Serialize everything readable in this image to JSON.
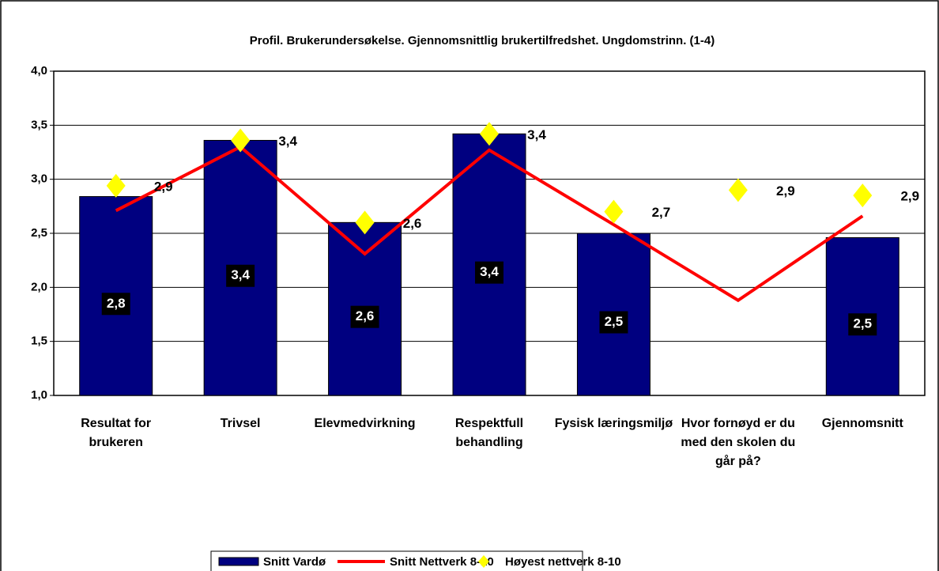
{
  "chart_data": {
    "type": "bar",
    "title": "Profil. Brukerundersøkelse. Gjennomsnittlig brukertilfredshet. Ungdomstrinn. (1-4)",
    "categories": [
      "Resultat for brukeren",
      "Trivsel",
      "Elevmedvirkning",
      "Respektfull behandling",
      "Fysisk læringsmiljø",
      "Hvor fornøyd er du med den skolen du går på?",
      "Gjennomsnitt"
    ],
    "series": [
      {
        "name": "Snitt Vardø",
        "type": "bar",
        "color": "#000080",
        "values": [
          2.84,
          3.36,
          2.6,
          3.42,
          2.5,
          null,
          2.46
        ],
        "value_labels": [
          "2,8",
          "3,4",
          "2,6",
          "3,4",
          "2,5",
          null,
          "2,5"
        ]
      },
      {
        "name": "Snitt Nettverk 8-10",
        "type": "line",
        "color": "#ff0000",
        "values": [
          2.71,
          3.3,
          2.31,
          3.27,
          2.58,
          1.88,
          2.66
        ]
      },
      {
        "name": "Høyest nettverk 8-10",
        "type": "scatter",
        "color": "#ffff00",
        "values": [
          2.94,
          3.36,
          2.6,
          3.42,
          2.7,
          2.9,
          2.85
        ],
        "value_labels": [
          "2,9",
          "3,4",
          "2,6",
          "3,4",
          "2,7",
          "2,9",
          "2,9"
        ]
      }
    ],
    "ylim": [
      1,
      4
    ],
    "yticks": [
      {
        "value": 1,
        "label": "1,0"
      },
      {
        "value": 1.5,
        "label": "1,5"
      },
      {
        "value": 2,
        "label": "2,0"
      },
      {
        "value": 2.5,
        "label": "2,5"
      },
      {
        "value": 3,
        "label": "3,0"
      },
      {
        "value": 3.5,
        "label": "3,5"
      },
      {
        "value": 4,
        "label": "4,0"
      }
    ],
    "grid": true,
    "legend": "bottom"
  }
}
